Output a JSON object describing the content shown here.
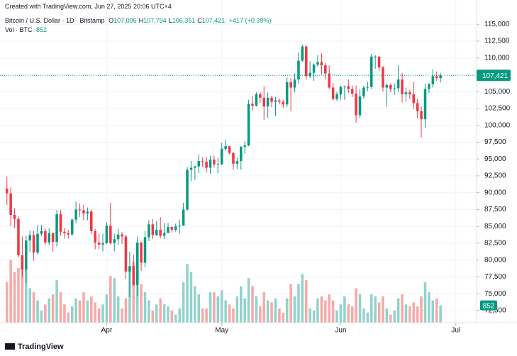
{
  "header": {
    "created": "Created with TradingView.com, Jun 27, 2025 20:06 UTC+4",
    "symbol": "Bitcoin / U.S. Dollar · 1D · Bitstamp",
    "ohlc": [
      {
        "key": "O",
        "value": "107,005"
      },
      {
        "key": "H",
        "value": "107,794"
      },
      {
        "key": "L",
        "value": "106,351"
      },
      {
        "key": "C",
        "value": "107,421"
      }
    ],
    "change": "+417 (+0.39%)",
    "volume_title": "Vol · BTC",
    "last_price": "107,421"
  },
  "footer": {
    "brand": "TradingView"
  },
  "chart_data": {
    "type": "candlestick",
    "open": [
      90600,
      89900,
      86700,
      86100,
      80700,
      78600,
      82900,
      83700,
      81100,
      83900,
      84300,
      82600,
      84000,
      82700,
      86800,
      84200,
      84000,
      83800,
      86000,
      87500,
      87400,
      86900,
      87200,
      84300,
      82600,
      82300,
      82500,
      85100,
      82500,
      83100,
      83800,
      83500,
      78300,
      79100,
      76300,
      82600,
      79600,
      83400,
      85300,
      83700,
      84500,
      83600,
      84000,
      84900,
      84500,
      85000,
      85100,
      87500,
      93400,
      93700,
      93900,
      94700,
      94600,
      93700,
      94900,
      94200,
      94200,
      96500,
      96900,
      95900,
      94300,
      94700,
      96800,
      97000,
      103200,
      102900,
      104600,
      104100,
      102800,
      104100,
      103500,
      103700,
      103500,
      103100,
      106400,
      105600,
      106800,
      109600,
      111700,
      107300,
      107800,
      109000,
      109400,
      108900,
      107700,
      105600,
      103900,
      104600,
      105700,
      105800,
      105400,
      104700,
      101500,
      104300,
      105600,
      105700,
      110200,
      110200,
      108600,
      105600,
      106000,
      105400,
      105500,
      106800,
      104600,
      104900,
      104600,
      103300,
      102100,
      100900,
      105400,
      106100,
      107300,
      107005
    ],
    "high": [
      92400,
      90800,
      87700,
      86500,
      83500,
      83600,
      84400,
      84300,
      85200,
      85200,
      84700,
      84700,
      84000,
      87400,
      87400,
      84800,
      84500,
      86200,
      88700,
      88400,
      88200,
      87800,
      87500,
      84600,
      83900,
      83900,
      85600,
      88500,
      83900,
      84700,
      84200,
      83700,
      81200,
      80800,
      83500,
      82700,
      84300,
      85900,
      86100,
      85800,
      86400,
      85500,
      85500,
      85100,
      85400,
      86000,
      88500,
      93800,
      94700,
      94000,
      95700,
      95300,
      95300,
      95500,
      95500,
      95200,
      97400,
      97900,
      96900,
      96000,
      95200,
      96900,
      97600,
      103800,
      104300,
      104900,
      104900,
      105800,
      104900,
      104400,
      104200,
      104000,
      103800,
      107100,
      107000,
      107700,
      110800,
      112000,
      111900,
      109500,
      109200,
      110400,
      110700,
      109300,
      108900,
      106300,
      105000,
      105900,
      105900,
      106800,
      105900,
      105900,
      105400,
      105900,
      106500,
      110600,
      110400,
      110300,
      108800,
      106200,
      106200,
      106200,
      108900,
      107800,
      105600,
      105300,
      106500,
      103900,
      102800,
      106200,
      106300,
      108300,
      108000,
      107794
    ],
    "low": [
      88200,
      85000,
      84800,
      80400,
      77400,
      76600,
      81200,
      79900,
      80800,
      83600,
      82300,
      82200,
      81200,
      82000,
      83600,
      83200,
      83200,
      83600,
      85500,
      86400,
      85900,
      85900,
      83900,
      81600,
      81600,
      81300,
      82400,
      82300,
      81300,
      82200,
      82400,
      77200,
      74500,
      76200,
      74600,
      78400,
      78900,
      82800,
      83100,
      83600,
      83200,
      83100,
      84000,
      84100,
      84200,
      83900,
      85100,
      87300,
      91700,
      91900,
      92900,
      93800,
      93000,
      92800,
      93700,
      92900,
      94100,
      96200,
      95700,
      93400,
      93500,
      93400,
      95800,
      96900,
      102200,
      102800,
      103300,
      100800,
      101100,
      102700,
      101400,
      103100,
      102600,
      102700,
      102100,
      104900,
      106200,
      109400,
      106800,
      107000,
      106600,
      108700,
      107600,
      106800,
      105400,
      103700,
      103600,
      103800,
      103800,
      104800,
      104200,
      100400,
      101100,
      103900,
      105100,
      105400,
      108400,
      108100,
      105000,
      102800,
      104900,
      104500,
      104900,
      103400,
      103500,
      103900,
      102400,
      101000,
      98200,
      99600,
      104800,
      105600,
      106600,
      106351
    ],
    "close": [
      89900,
      86700,
      86100,
      80700,
      78600,
      82900,
      83700,
      81100,
      83900,
      84300,
      82600,
      84000,
      82700,
      86800,
      84200,
      84000,
      83800,
      86000,
      87500,
      87400,
      86900,
      87200,
      84300,
      82600,
      82300,
      82500,
      85100,
      82500,
      83100,
      83800,
      83500,
      78300,
      79100,
      76300,
      82600,
      79600,
      83400,
      85300,
      83700,
      84500,
      83600,
      84000,
      84900,
      84500,
      85000,
      85100,
      87500,
      93400,
      93700,
      93900,
      94700,
      94600,
      93700,
      94900,
      94200,
      94200,
      96500,
      96900,
      95900,
      94300,
      94700,
      96800,
      97000,
      103200,
      102900,
      104600,
      104100,
      102800,
      104100,
      103500,
      103700,
      103500,
      103100,
      106400,
      105600,
      106800,
      109600,
      111700,
      107300,
      107800,
      109000,
      109400,
      108900,
      107700,
      105600,
      103900,
      104600,
      105700,
      105800,
      105400,
      104700,
      101500,
      104300,
      105600,
      105700,
      110200,
      110200,
      108600,
      105600,
      106000,
      105400,
      105500,
      106800,
      104600,
      104900,
      104600,
      103300,
      102100,
      100900,
      105400,
      106100,
      107300,
      107005,
      107421
    ],
    "volume": [
      2000,
      3100,
      2500,
      2700,
      3000,
      2900,
      1700,
      1500,
      1100,
      600,
      900,
      1200,
      1400,
      2100,
      1500,
      900,
      500,
      800,
      1200,
      1100,
      1500,
      1100,
      1300,
      1000,
      700,
      900,
      1400,
      2300,
      2200,
      1300,
      700,
      1200,
      2600,
      3000,
      3400,
      1900,
      1500,
      1100,
      600,
      900,
      1200,
      900,
      800,
      600,
      400,
      700,
      2000,
      2900,
      2500,
      1800,
      1400,
      700,
      700,
      1500,
      1500,
      1300,
      1600,
      1100,
      900,
      700,
      1300,
      1800,
      1200,
      2200,
      1800,
      1300,
      800,
      1500,
      1100,
      1000,
      1200,
      700,
      500,
      1200,
      1900,
      1300,
      1900,
      2400,
      2100,
      700,
      600,
      1200,
      1300,
      1100,
      1400,
      1100,
      600,
      900,
      1300,
      900,
      800,
      1700,
      1400,
      700,
      500,
      1400,
      1300,
      1000,
      1300,
      700,
      400,
      600,
      1200,
      1400,
      900,
      800,
      1000,
      800,
      1300,
      2000,
      1500,
      1100,
      1200,
      852
    ],
    "xlim": [
      -1.8,
      122.4
    ],
    "xticks": [
      {
        "value": 26,
        "label": "Apr"
      },
      {
        "value": 56,
        "label": "May"
      },
      {
        "value": 87,
        "label": "Jun"
      },
      {
        "value": 117,
        "label": "Jul"
      }
    ],
    "ylim": [
      70700,
      116500
    ],
    "yticks": [
      {
        "value": 72500,
        "label": "72,500"
      },
      {
        "value": 75000,
        "label": "75,000"
      },
      {
        "value": 77500,
        "label": "77,500"
      },
      {
        "value": 80000,
        "label": "80,000"
      },
      {
        "value": 82500,
        "label": "82,500"
      },
      {
        "value": 85000,
        "label": "85,000"
      },
      {
        "value": 87500,
        "label": "87,500"
      },
      {
        "value": 90000,
        "label": "90,000"
      },
      {
        "value": 92500,
        "label": "92,500"
      },
      {
        "value": 95000,
        "label": "95,000"
      },
      {
        "value": 97500,
        "label": "97,500"
      },
      {
        "value": 100000,
        "label": "100,000"
      },
      {
        "value": 102500,
        "label": "102,500"
      },
      {
        "value": 105000,
        "label": "105,000"
      },
      {
        "value": 107500,
        "label": "107,500"
      },
      {
        "value": 110000,
        "label": "110,000"
      },
      {
        "value": 112500,
        "label": "112,500"
      },
      {
        "value": 115000,
        "label": "115,000"
      }
    ],
    "vlim": [
      0,
      3500
    ],
    "grid": true,
    "up_color": "#089981",
    "down_color": "#f23645",
    "volume_up_color": "#92d2cc",
    "volume_down_color": "#f7a9a7"
  }
}
